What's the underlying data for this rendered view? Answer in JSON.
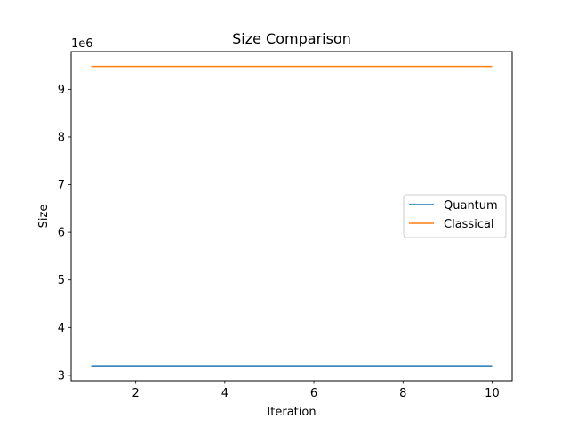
{
  "chart_data": {
    "type": "line",
    "title": "Size Comparison",
    "xlabel": "Iteration",
    "ylabel": "Size",
    "y_offset_label": "1e6",
    "xlim": [
      0.55,
      10.45
    ],
    "ylim": [
      2.886,
      9.79
    ],
    "x_ticks": [
      2,
      4,
      6,
      8,
      10
    ],
    "y_ticks": [
      3,
      4,
      5,
      6,
      7,
      8,
      9
    ],
    "grid": false,
    "legend_position": "center-right",
    "x": [
      1,
      2,
      3,
      4,
      5,
      6,
      7,
      8,
      9,
      10
    ],
    "series": [
      {
        "name": "Quantum",
        "color": "#1f77b4",
        "values": [
          3.2,
          3.2,
          3.2,
          3.2,
          3.2,
          3.2,
          3.2,
          3.2,
          3.2,
          3.2
        ]
      },
      {
        "name": "Classical",
        "color": "#ff7f0e",
        "values": [
          9.48,
          9.48,
          9.48,
          9.48,
          9.48,
          9.48,
          9.48,
          9.48,
          9.48,
          9.48
        ]
      }
    ]
  }
}
